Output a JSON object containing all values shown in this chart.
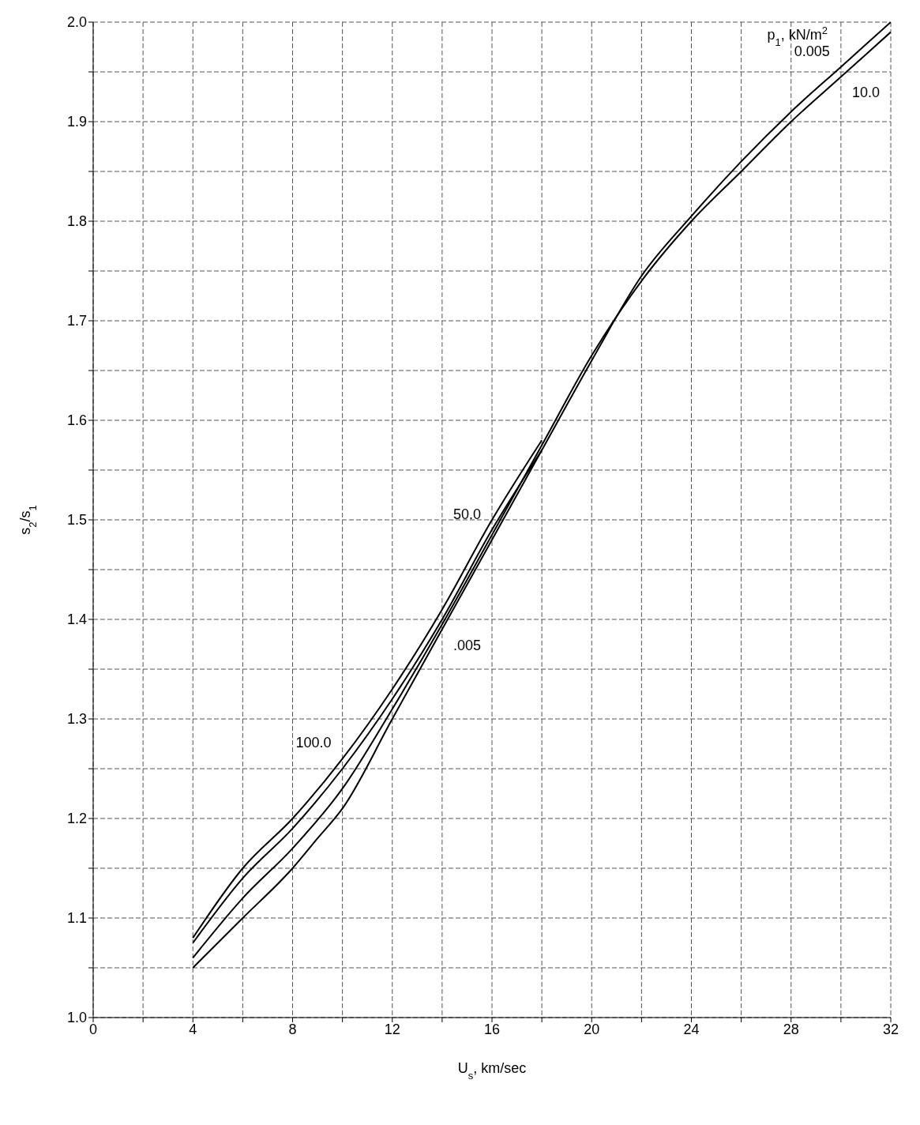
{
  "chart_data": {
    "type": "line",
    "xlabel": "U$_{s}$, km/sec",
    "ylabel": "s$_{2}$/s$_{1}$",
    "xlim": [
      0,
      32
    ],
    "ylim": [
      1,
      2
    ],
    "xticks": [
      0,
      {
        "value": 2,
        "label": null
      },
      4,
      {
        "value": 6,
        "label": null
      },
      8,
      {
        "value": 10,
        "label": null
      },
      12,
      {
        "value": 14,
        "label": null
      },
      16,
      {
        "value": 18,
        "label": null
      },
      20,
      {
        "value": 22,
        "label": null
      },
      24,
      {
        "value": 26,
        "label": null
      },
      28,
      {
        "value": 30,
        "label": null
      },
      32
    ],
    "yticks": [
      {
        "value": 1,
        "label": "1.0"
      },
      {
        "value": 1.05,
        "label": null
      },
      1.1,
      {
        "value": 1.15,
        "label": null
      },
      1.2,
      {
        "value": 1.25,
        "label": null
      },
      1.3,
      {
        "value": 1.35,
        "label": null
      },
      1.4,
      {
        "value": 1.45,
        "label": null
      },
      1.5,
      {
        "value": 1.55,
        "label": null
      },
      1.6,
      {
        "value": 1.65,
        "label": null
      },
      1.7,
      {
        "value": 1.75,
        "label": null
      },
      1.8,
      {
        "value": 1.85,
        "label": null
      },
      1.9,
      {
        "value": 1.95,
        "label": null
      },
      {
        "value": 2,
        "label": "2.0"
      }
    ],
    "grid": true,
    "marker": "none",
    "line_style": "solid",
    "series": [
      {
        "color": "#000000",
        "x": [
          4,
          6,
          8,
          9,
          10,
          12,
          14,
          16,
          18,
          20,
          22,
          24,
          26,
          28,
          30,
          32
        ],
        "values": [
          1.05,
          1.1,
          1.15,
          1.18,
          1.21,
          1.3,
          1.39,
          1.48,
          1.57,
          1.66,
          1.745,
          1.805,
          1.86,
          1.91,
          1.955,
          2.0
        ]
      },
      {
        "color": "#000000",
        "x": [
          4,
          6,
          8,
          10,
          12,
          14,
          16,
          18,
          20,
          22,
          24,
          26,
          28,
          30,
          32
        ],
        "values": [
          1.06,
          1.12,
          1.17,
          1.23,
          1.31,
          1.395,
          1.485,
          1.575,
          1.665,
          1.74,
          1.8,
          1.85,
          1.9,
          1.945,
          1.99
        ]
      },
      {
        "color": "#000000",
        "x": [
          4,
          6,
          8,
          10,
          12,
          14,
          16,
          18
        ],
        "values": [
          1.075,
          1.14,
          1.19,
          1.25,
          1.32,
          1.4,
          1.49,
          1.57
        ]
      },
      {
        "color": "#000000",
        "x": [
          4,
          6,
          8,
          10,
          12,
          14,
          16,
          18
        ],
        "values": [
          1.08,
          1.15,
          1.2,
          1.26,
          1.33,
          1.41,
          1.5,
          1.58
        ]
      }
    ],
    "legend_title": "p$_{1}$, kN/m$^{2}$",
    "annotations": [
      {
        "text": "0.005",
        "x": 30,
        "y": 1.955
      },
      {
        "text": "10.0",
        "x": 30,
        "y": 1.945
      },
      {
        "text": "50.0",
        "x": 16,
        "y": 1.49
      },
      {
        "text": "100.0",
        "x": 10,
        "y": 1.26
      },
      {
        "text": ".005",
        "x": 14,
        "y": 1.39
      }
    ]
  }
}
